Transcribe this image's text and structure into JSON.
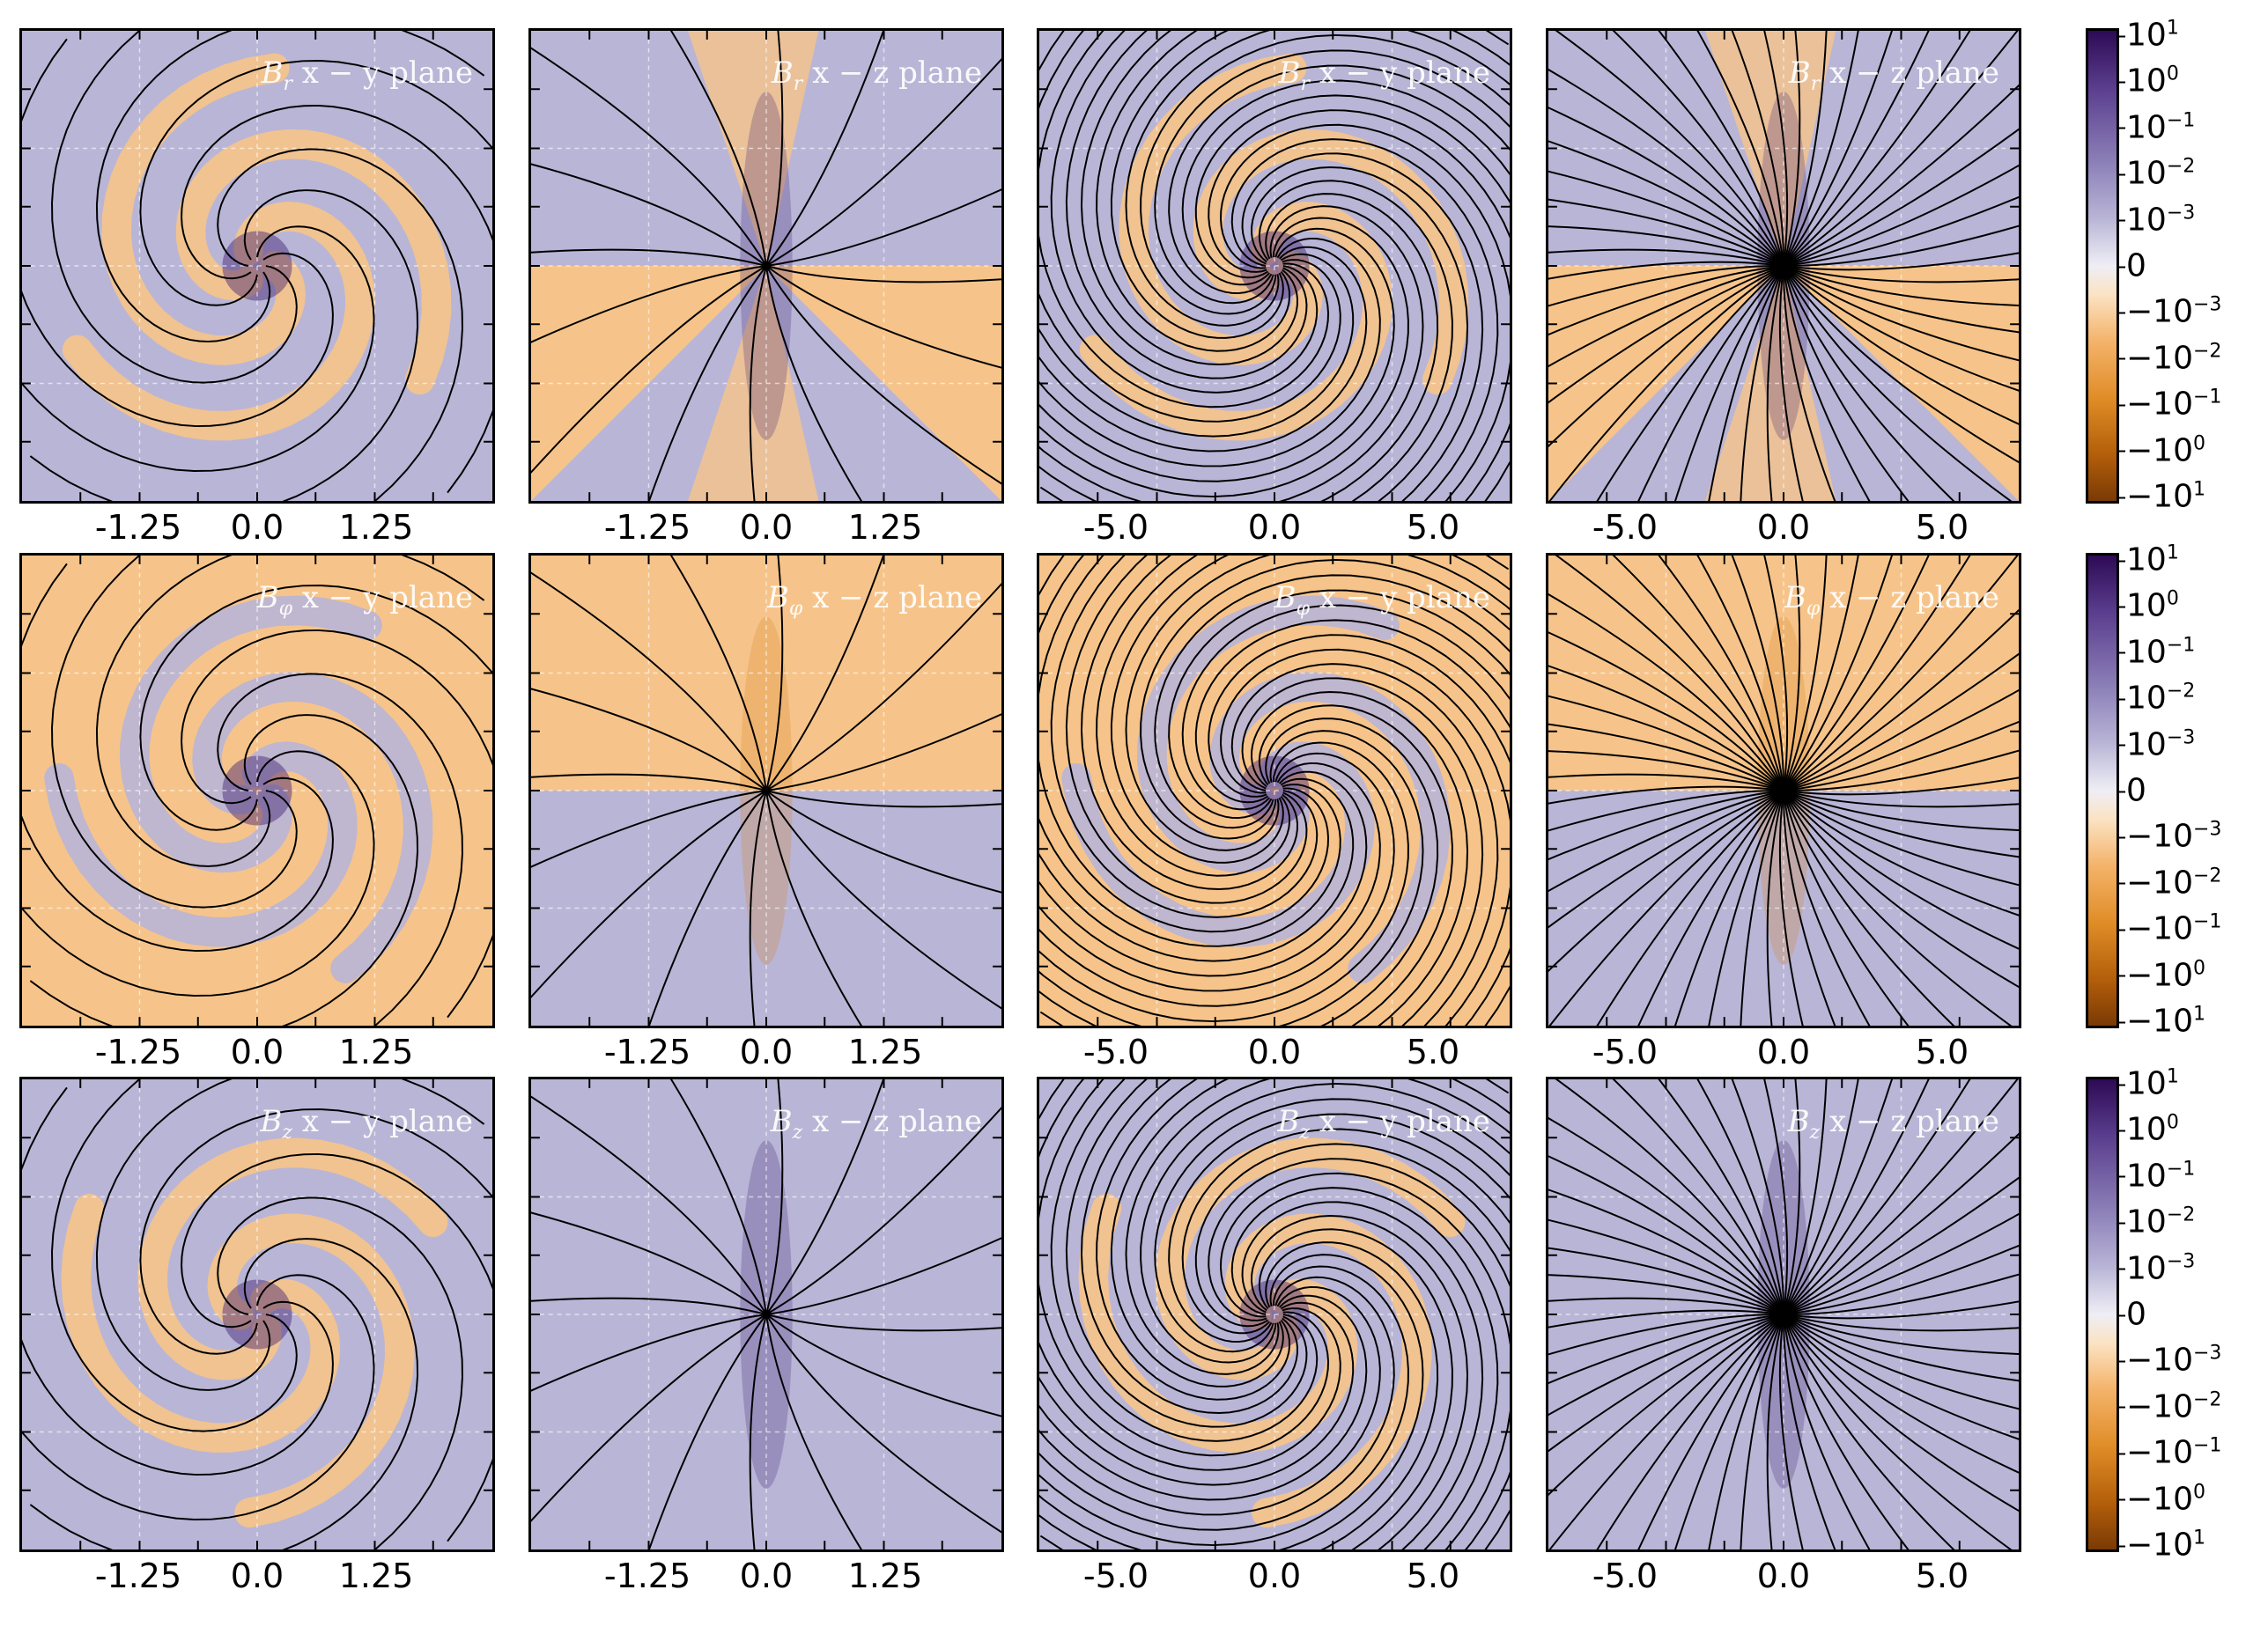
{
  "colors": {
    "positive_light": "#b9b5d6",
    "positive_dark": "#3d1f70",
    "negative_light": "#f6c48a",
    "negative_dark": "#d9841f",
    "neutral": "#f2f2f6",
    "streamline": "#000000"
  },
  "rows": [
    {
      "panels": [
        {
          "title_sym": "B",
          "title_sub": "r",
          "title_plane": " x − y plane",
          "ticks": [
            "-1.25",
            "0.0",
            "1.25"
          ],
          "dominant": "positive"
        },
        {
          "title_sym": "B",
          "title_sub": "r",
          "title_plane": " x − z plane",
          "ticks": [
            "-1.25",
            "0.0",
            "1.25"
          ],
          "dominant": "mixed"
        },
        {
          "title_sym": "B",
          "title_sub": "r",
          "title_plane": " x − y plane",
          "ticks": [
            "-5.0",
            "0.0",
            "5.0"
          ],
          "dominant": "positive"
        },
        {
          "title_sym": "B",
          "title_sub": "r",
          "title_plane": " x − z plane",
          "ticks": [
            "-5.0",
            "0.0",
            "5.0"
          ],
          "dominant": "mixed"
        }
      ]
    },
    {
      "panels": [
        {
          "title_sym": "B",
          "title_sub": "φ",
          "title_plane": " x − y plane",
          "ticks": [
            "-1.25",
            "0.0",
            "1.25"
          ],
          "dominant": "negative"
        },
        {
          "title_sym": "B",
          "title_sub": "φ",
          "title_plane": " x − z plane",
          "ticks": [
            "-1.25",
            "0.0",
            "1.25"
          ],
          "dominant": "split"
        },
        {
          "title_sym": "B",
          "title_sub": "φ",
          "title_plane": " x − y plane",
          "ticks": [
            "-5.0",
            "0.0",
            "5.0"
          ],
          "dominant": "negative"
        },
        {
          "title_sym": "B",
          "title_sub": "φ",
          "title_plane": " x − z plane",
          "ticks": [
            "-5.0",
            "0.0",
            "5.0"
          ],
          "dominant": "split"
        }
      ]
    },
    {
      "panels": [
        {
          "title_sym": "B",
          "title_sub": "z",
          "title_plane": " x − y plane",
          "ticks": [
            "-1.25",
            "0.0",
            "1.25"
          ],
          "dominant": "positive"
        },
        {
          "title_sym": "B",
          "title_sub": "z",
          "title_plane": " x − z plane",
          "ticks": [
            "-1.25",
            "0.0",
            "1.25"
          ],
          "dominant": "positive"
        },
        {
          "title_sym": "B",
          "title_sub": "z",
          "title_plane": " x − y plane",
          "ticks": [
            "-5.0",
            "0.0",
            "5.0"
          ],
          "dominant": "positive"
        },
        {
          "title_sym": "B",
          "title_sub": "z",
          "title_plane": " x − z plane",
          "ticks": [
            "-5.0",
            "0.0",
            "5.0"
          ],
          "dominant": "positive"
        }
      ]
    }
  ],
  "colorbar": {
    "labels": [
      {
        "base": "10",
        "exp": "1"
      },
      {
        "base": "10",
        "exp": "0"
      },
      {
        "base": "10",
        "exp": "−1"
      },
      {
        "base": "10",
        "exp": "−2"
      },
      {
        "base": "10",
        "exp": "−3"
      },
      {
        "base": "0",
        "exp": ""
      },
      {
        "base": "−10",
        "exp": "−3"
      },
      {
        "base": "−10",
        "exp": "−2"
      },
      {
        "base": "−10",
        "exp": "−1"
      },
      {
        "base": "−10",
        "exp": "0"
      },
      {
        "base": "−10",
        "exp": "1"
      }
    ]
  }
}
